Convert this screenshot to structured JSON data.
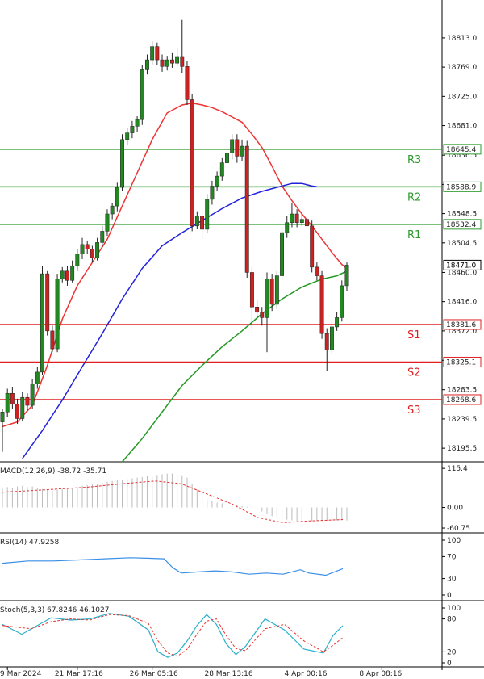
{
  "chart_data": [
    {
      "type": "candlestick",
      "ylim": [
        18175,
        18870
      ],
      "y_ticks": [
        18813.0,
        18769.0,
        18725.0,
        18681.0,
        18636.5,
        18592.3,
        18548.5,
        18504.5,
        18460.0,
        18416.0,
        18372.0,
        18327.7,
        18283.5,
        18239.5,
        18195.5
      ],
      "y_tick_labels": [
        "18813.0",
        "18769.0",
        "18725.0",
        "18681.0",
        "18636.5",
        "18592.3",
        "18548.5",
        "18504.5",
        "18460.0",
        "18416.0",
        "18372.0",
        "18327.7",
        "18283.5",
        "18239.5",
        "18195.5"
      ],
      "x_tick_labels": [
        "9 Mar 2024",
        "21 Mar 17:16",
        "26 Mar 05:16",
        "28 Mar 13:16",
        "4 Apr 00:16",
        "8 Apr 08:16"
      ],
      "x_tick_index": [
        1,
        15,
        30,
        45,
        61,
        76
      ],
      "last_price": "18471.0",
      "levels": [
        {
          "name": "R3",
          "value": 18645.4,
          "label": "18645.4",
          "color": "#2e9b2e"
        },
        {
          "name": "R2",
          "value": 18588.9,
          "label": "18588.9",
          "color": "#2e9b2e"
        },
        {
          "name": "R1",
          "value": 18532.4,
          "label": "18532.4",
          "color": "#2e9b2e"
        },
        {
          "name": "S1",
          "value": 18381.6,
          "label": "18381.6",
          "color": "#e02020"
        },
        {
          "name": "S2",
          "value": 18325.1,
          "label": "18325.1",
          "color": "#e02020"
        },
        {
          "name": "S3",
          "value": 18268.6,
          "label": "18268.6",
          "color": "#e02020"
        }
      ],
      "candles": [
        [
          18235,
          18250,
          18190,
          18255
        ],
        [
          18250,
          18278,
          18242,
          18285
        ],
        [
          18278,
          18262,
          18255,
          18288
        ],
        [
          18262,
          18240,
          18232,
          18270
        ],
        [
          18240,
          18272,
          18236,
          18280
        ],
        [
          18272,
          18260,
          18252,
          18278
        ],
        [
          18260,
          18292,
          18255,
          18300
        ],
        [
          18292,
          18310,
          18285,
          18318
        ],
        [
          18310,
          18458,
          18305,
          18470
        ],
        [
          18458,
          18372,
          18365,
          18462
        ],
        [
          18372,
          18345,
          18340,
          18380
        ],
        [
          18345,
          18450,
          18340,
          18458
        ],
        [
          18450,
          18462,
          18445,
          18468
        ],
        [
          18462,
          18448,
          18440,
          18470
        ],
        [
          18448,
          18470,
          18445,
          18478
        ],
        [
          18470,
          18488,
          18462,
          18495
        ],
        [
          18488,
          18502,
          18480,
          18512
        ],
        [
          18502,
          18495,
          18488,
          18508
        ],
        [
          18495,
          18482,
          18475,
          18500
        ],
        [
          18482,
          18505,
          18478,
          18512
        ],
        [
          18505,
          18522,
          18498,
          18530
        ],
        [
          18522,
          18548,
          18515,
          18555
        ],
        [
          18548,
          18560,
          18540,
          18565
        ],
        [
          18560,
          18588,
          18552,
          18595
        ],
        [
          18588,
          18660,
          18582,
          18668
        ],
        [
          18660,
          18670,
          18652,
          18678
        ],
        [
          18670,
          18680,
          18662,
          18688
        ],
        [
          18680,
          18690,
          18672,
          18695
        ],
        [
          18690,
          18765,
          18682,
          18772
        ],
        [
          18765,
          18780,
          18758,
          18788
        ],
        [
          18780,
          18800,
          18772,
          18808
        ],
        [
          18800,
          18780,
          18772,
          18806
        ],
        [
          18780,
          18770,
          18762,
          18788
        ],
        [
          18770,
          18780,
          18764,
          18786
        ],
        [
          18780,
          18775,
          18768,
          18790
        ],
        [
          18775,
          18785,
          18770,
          18798
        ],
        [
          18785,
          18770,
          18760,
          18840
        ],
        [
          18770,
          18720,
          18712,
          18778
        ],
        [
          18720,
          18530,
          18522,
          18728
        ],
        [
          18530,
          18545,
          18525,
          18552
        ],
        [
          18545,
          18525,
          18510,
          18550
        ],
        [
          18525,
          18570,
          18520,
          18578
        ],
        [
          18570,
          18590,
          18562,
          18598
        ],
        [
          18590,
          18605,
          18582,
          18612
        ],
        [
          18605,
          18625,
          18598,
          18632
        ],
        [
          18625,
          18640,
          18618,
          18648
        ],
        [
          18640,
          18660,
          18630,
          18668
        ],
        [
          18660,
          18635,
          18625,
          18668
        ],
        [
          18635,
          18650,
          18628,
          18660
        ],
        [
          18650,
          18460,
          18452,
          18658
        ],
        [
          18460,
          18408,
          18375,
          18468
        ],
        [
          18408,
          18400,
          18392,
          18418
        ],
        [
          18400,
          18392,
          18380,
          18408
        ],
        [
          18392,
          18450,
          18340,
          18460
        ],
        [
          18450,
          18412,
          18402,
          18458
        ],
        [
          18412,
          18455,
          18405,
          18462
        ],
        [
          18455,
          18520,
          18448,
          18528
        ],
        [
          18520,
          18535,
          18512,
          18545
        ],
        [
          18535,
          18548,
          18528,
          18565
        ],
        [
          18548,
          18535,
          18528,
          18555
        ],
        [
          18535,
          18540,
          18530,
          18548
        ],
        [
          18540,
          18530,
          18520,
          18546
        ],
        [
          18530,
          18468,
          18460,
          18538
        ],
        [
          18468,
          18455,
          18448,
          18475
        ],
        [
          18455,
          18368,
          18360,
          18462
        ],
        [
          18368,
          18343,
          18312,
          18376
        ],
        [
          18343,
          18378,
          18338,
          18386
        ],
        [
          18378,
          18392,
          18372,
          18400
        ],
        [
          18392,
          18440,
          18386,
          18448
        ],
        [
          18440,
          18471,
          18432,
          18475
        ]
      ],
      "ma_red": [
        [
          0,
          18228
        ],
        [
          3,
          18235
        ],
        [
          6,
          18260
        ],
        [
          9,
          18320
        ],
        [
          12,
          18390
        ],
        [
          15,
          18440
        ],
        [
          18,
          18475
        ],
        [
          21,
          18510
        ],
        [
          24,
          18560
        ],
        [
          27,
          18610
        ],
        [
          30,
          18660
        ],
        [
          33,
          18700
        ],
        [
          36,
          18712
        ],
        [
          38,
          18715
        ],
        [
          40,
          18712
        ],
        [
          42,
          18708
        ],
        [
          44,
          18702
        ],
        [
          46,
          18694
        ],
        [
          48,
          18686
        ],
        [
          50,
          18668
        ],
        [
          52,
          18648
        ],
        [
          54,
          18620
        ],
        [
          56,
          18590
        ],
        [
          58,
          18568
        ],
        [
          60,
          18548
        ],
        [
          62,
          18530
        ],
        [
          64,
          18510
        ],
        [
          66,
          18490
        ],
        [
          68,
          18472
        ],
        [
          69,
          18466
        ]
      ],
      "ma_blue": [
        [
          4,
          18180
        ],
        [
          8,
          18222
        ],
        [
          12,
          18268
        ],
        [
          16,
          18318
        ],
        [
          20,
          18368
        ],
        [
          24,
          18420
        ],
        [
          28,
          18466
        ],
        [
          32,
          18500
        ],
        [
          36,
          18520
        ],
        [
          40,
          18538
        ],
        [
          44,
          18556
        ],
        [
          48,
          18572
        ],
        [
          52,
          18582
        ],
        [
          56,
          18590
        ],
        [
          58,
          18594
        ],
        [
          60,
          18594
        ],
        [
          62,
          18590
        ],
        [
          63,
          18589
        ]
      ],
      "ma_green": [
        [
          24,
          18175
        ],
        [
          28,
          18210
        ],
        [
          32,
          18250
        ],
        [
          36,
          18290
        ],
        [
          40,
          18320
        ],
        [
          44,
          18348
        ],
        [
          48,
          18372
        ],
        [
          52,
          18398
        ],
        [
          56,
          18420
        ],
        [
          60,
          18438
        ],
        [
          64,
          18450
        ],
        [
          67,
          18455
        ],
        [
          69,
          18462
        ]
      ],
      "grid": false,
      "legend": "none"
    },
    {
      "type": "bar",
      "title": "MACD(12,26,9) -38.72 -35.71",
      "ylim": [
        -75,
        130
      ],
      "y_tick_labels": [
        "115.4",
        "0.00",
        "-60.75"
      ],
      "y_ticks": [
        115.4,
        0.0,
        -60.75
      ],
      "histogram": [
        55,
        60,
        58,
        62,
        64,
        60,
        62,
        58,
        54,
        52,
        50,
        52,
        54,
        56,
        58,
        62,
        64,
        66,
        68,
        70,
        72,
        76,
        78,
        80,
        82,
        84,
        86,
        88,
        90,
        92,
        94,
        96,
        98,
        100,
        100,
        98,
        95,
        88,
        70,
        52,
        36,
        24,
        18,
        14,
        12,
        10,
        8,
        6,
        4,
        2,
        -2,
        -6,
        -12,
        -20,
        -26,
        -30,
        -34,
        -36,
        -38,
        -40,
        -42,
        -42,
        -41,
        -40,
        -40,
        -39,
        -39,
        -38,
        -38,
        -38.72
      ],
      "signal": [
        [
          0,
          45
        ],
        [
          10,
          52
        ],
        [
          20,
          60
        ],
        [
          30,
          72
        ],
        [
          36,
          78
        ],
        [
          42,
          70
        ],
        [
          48,
          40
        ],
        [
          54,
          10
        ],
        [
          60,
          -30
        ],
        [
          66,
          -45
        ],
        [
          72,
          -40
        ],
        [
          80,
          -35.71
        ]
      ]
    },
    {
      "type": "line",
      "title": "RSI(14) 47.9258",
      "ylim": [
        0,
        100
      ],
      "y_tick_labels": [
        "100",
        "70",
        "30",
        "0"
      ],
      "y_ticks": [
        100,
        70,
        30,
        0
      ],
      "series": [
        {
          "values": [
            [
              0,
              58
            ],
            [
              6,
              62
            ],
            [
              12,
              62
            ],
            [
              18,
              64
            ],
            [
              24,
              66
            ],
            [
              30,
              68
            ],
            [
              34,
              67
            ],
            [
              38,
              66
            ],
            [
              40,
              50
            ],
            [
              42,
              40
            ],
            [
              46,
              42
            ],
            [
              50,
              44
            ],
            [
              54,
              42
            ],
            [
              56,
              40
            ],
            [
              58,
              38
            ],
            [
              62,
              40
            ],
            [
              66,
              38
            ],
            [
              70,
              46
            ],
            [
              72,
              40
            ],
            [
              76,
              36
            ],
            [
              80,
              47.9258
            ]
          ]
        }
      ]
    },
    {
      "type": "line",
      "title": "Stoch(5,3,3) 67.8246 46.1027",
      "ylim": [
        0,
        100
      ],
      "y_tick_labels": [
        "100",
        "80",
        "20",
        "0"
      ],
      "y_ticks": [
        100,
        80,
        20,
        0
      ],
      "series": [
        {
          "values": [
            [
              0,
              70
            ],
            [
              4,
              52
            ],
            [
              8,
              72
            ],
            [
              10,
              82
            ],
            [
              14,
              78
            ],
            [
              18,
              80
            ],
            [
              22,
              90
            ],
            [
              26,
              85
            ],
            [
              30,
              60
            ],
            [
              32,
              20
            ],
            [
              34,
              10
            ],
            [
              36,
              18
            ],
            [
              38,
              40
            ],
            [
              40,
              68
            ],
            [
              42,
              88
            ],
            [
              44,
              70
            ],
            [
              46,
              35
            ],
            [
              48,
              15
            ],
            [
              50,
              30
            ],
            [
              54,
              80
            ],
            [
              58,
              60
            ],
            [
              62,
              25
            ],
            [
              66,
              18
            ],
            [
              68,
              50
            ],
            [
              70,
              67.8246
            ]
          ]
        },
        {
          "values": [
            [
              0,
              68
            ],
            [
              6,
              62
            ],
            [
              10,
              75
            ],
            [
              14,
              80
            ],
            [
              18,
              78
            ],
            [
              22,
              88
            ],
            [
              26,
              86
            ],
            [
              30,
              72
            ],
            [
              32,
              40
            ],
            [
              34,
              18
            ],
            [
              36,
              12
            ],
            [
              38,
              25
            ],
            [
              40,
              52
            ],
            [
              42,
              76
            ],
            [
              44,
              80
            ],
            [
              46,
              50
            ],
            [
              48,
              26
            ],
            [
              50,
              22
            ],
            [
              54,
              62
            ],
            [
              58,
              70
            ],
            [
              62,
              40
            ],
            [
              66,
              20
            ],
            [
              68,
              32
            ],
            [
              70,
              46.1027
            ]
          ]
        }
      ]
    }
  ]
}
